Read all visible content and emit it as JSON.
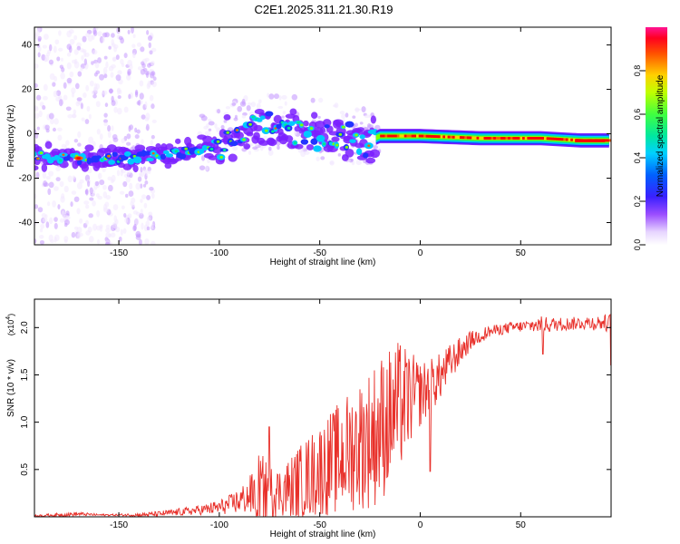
{
  "figure_title": "C2E1.2025.311.21.30.R19",
  "colors": {
    "snr_line": "#e8302a",
    "axis": "#000000",
    "background": "#ffffff",
    "colormap": [
      "#ffffff",
      "#f2e8ff",
      "#c79bff",
      "#7a1fff",
      "#2233ff",
      "#00c8ff",
      "#00e890",
      "#80ff00",
      "#ffd000",
      "#ff6000",
      "#ff0000",
      "#ff1493"
    ]
  },
  "chart_data": [
    {
      "id": "spectrogram",
      "type": "heatmap",
      "title": "C2E1.2025.311.21.30.R19",
      "xlabel": "Height of straight line (km)",
      "ylabel": "Frequency (Hz)",
      "xlim": [
        -192,
        95
      ],
      "ylim": [
        -50,
        48
      ],
      "xticks": [
        -150,
        -100,
        -50,
        0,
        50
      ],
      "yticks": [
        -40,
        -20,
        0,
        20,
        40
      ],
      "colorbar": {
        "label": "Normalized spectral amplitude",
        "range": [
          0,
          1
        ],
        "ticks": [
          "0.0",
          "0.2",
          "0.4",
          "0.6",
          "0.8"
        ]
      },
      "ridge": [
        {
          "x": -190,
          "f": -10
        },
        {
          "x": -170,
          "f": -11
        },
        {
          "x": -150,
          "f": -11
        },
        {
          "x": -130,
          "f": -10
        },
        {
          "x": -110,
          "f": -7
        },
        {
          "x": -100,
          "f": -5
        },
        {
          "x": -90,
          "f": 0
        },
        {
          "x": -80,
          "f": 3
        },
        {
          "x": -70,
          "f": 2
        },
        {
          "x": -60,
          "f": 0
        },
        {
          "x": -50,
          "f": 0
        },
        {
          "x": -40,
          "f": -2
        },
        {
          "x": -25,
          "f": -3
        },
        {
          "x": -20,
          "f": -1
        },
        {
          "x": 0,
          "f": -1
        },
        {
          "x": 30,
          "f": -2
        },
        {
          "x": 60,
          "f": -2
        },
        {
          "x": 80,
          "f": -3
        },
        {
          "x": 95,
          "f": -3
        }
      ]
    },
    {
      "id": "snr",
      "type": "line",
      "xlabel": "Height of straight line (km)",
      "ylabel": "SNR (10 * v/v)",
      "y_exponent_label": "(x10",
      "y_exponent_power": "4",
      "y_exponent_close": ")",
      "xlim": [
        -192,
        95
      ],
      "ylim": [
        0,
        2.3
      ],
      "xticks": [
        -150,
        -100,
        -50,
        0,
        50
      ],
      "yticks": [
        0.5,
        1.0,
        1.5,
        2.0
      ],
      "ytick_labels": [
        "0.5",
        "1.0",
        "1.5",
        "2.0"
      ],
      "series": [
        {
          "name": "SNR",
          "x": [
            -192,
            -180,
            -170,
            -160,
            -150,
            -140,
            -130,
            -120,
            -110,
            -100,
            -95,
            -90,
            -85,
            -80,
            -75,
            -70,
            -65,
            -60,
            -55,
            -50,
            -45,
            -40,
            -35,
            -30,
            -25,
            -20,
            -15,
            -10,
            -5,
            0,
            5,
            10,
            15,
            20,
            25,
            30,
            35,
            40,
            45,
            50,
            55,
            60,
            65,
            70,
            75,
            80,
            85,
            90,
            95
          ],
          "values": [
            0.01,
            0.02,
            0.03,
            0.02,
            0.02,
            0.02,
            0.03,
            0.05,
            0.07,
            0.1,
            0.13,
            0.17,
            0.22,
            0.25,
            0.25,
            0.27,
            0.3,
            0.36,
            0.43,
            0.5,
            0.56,
            0.62,
            0.7,
            0.77,
            0.83,
            0.93,
            1.05,
            1.17,
            1.25,
            1.3,
            1.38,
            1.48,
            1.63,
            1.75,
            1.86,
            1.92,
            1.96,
            1.98,
            2.0,
            2.01,
            2.02,
            2.03,
            2.03,
            2.04,
            2.04,
            2.05,
            2.05,
            2.05,
            2.05
          ],
          "spread": [
            0.01,
            0.02,
            0.02,
            0.01,
            0.01,
            0.02,
            0.03,
            0.04,
            0.05,
            0.08,
            0.1,
            0.14,
            0.2,
            0.45,
            0.3,
            0.25,
            0.35,
            0.4,
            0.45,
            0.5,
            0.55,
            0.6,
            0.65,
            0.7,
            0.75,
            0.8,
            0.75,
            0.7,
            0.5,
            0.35,
            0.3,
            0.25,
            0.2,
            0.15,
            0.1,
            0.08,
            0.06,
            0.06,
            0.06,
            0.06,
            0.07,
            0.09,
            0.08,
            0.07,
            0.07,
            0.07,
            0.08,
            0.08,
            0.1
          ]
        }
      ]
    }
  ]
}
